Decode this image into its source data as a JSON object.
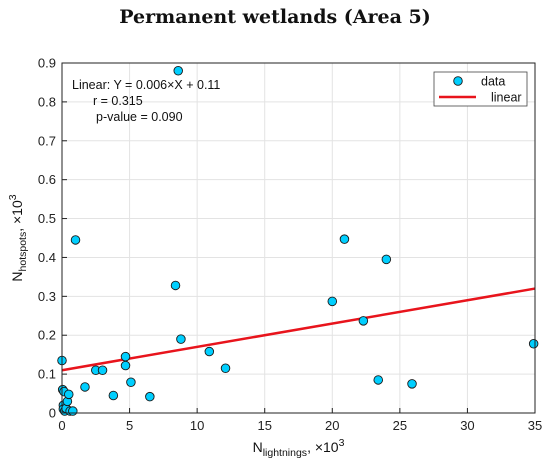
{
  "chart_data": {
    "type": "scatter",
    "title": "Permanent wetlands (Area 5)",
    "xlabel": {
      "base": "N",
      "sub": "lightnings",
      "suffix": ", ×10",
      "sup": "3"
    },
    "ylabel": {
      "base": "N",
      "sub": "hotspots",
      "suffix": ", ×10",
      "sup": "3"
    },
    "xlim": [
      0,
      35
    ],
    "ylim": [
      0,
      0.9
    ],
    "xticks": [
      "0",
      "5",
      "10",
      "15",
      "20",
      "25",
      "30",
      "35"
    ],
    "yticks": [
      "0",
      "0.1",
      "0.2",
      "0.3",
      "0.4",
      "0.5",
      "0.6",
      "0.7",
      "0.8",
      "0.9"
    ],
    "grid": true,
    "legend_position": "top-right",
    "legend": [
      "data",
      "linear"
    ],
    "annotations": [
      "Linear:  Y = 0.006×X + 0.11",
      "r = 0.315",
      "p-value = 0.090"
    ],
    "series": [
      {
        "name": "data",
        "color": "#00cfff",
        "points": [
          [
            0.0,
            0.135
          ],
          [
            0.05,
            0.06
          ],
          [
            0.15,
            0.055
          ],
          [
            0.1,
            0.02
          ],
          [
            0.1,
            0.01
          ],
          [
            0.2,
            0.005
          ],
          [
            0.3,
            0.012
          ],
          [
            0.4,
            0.03
          ],
          [
            0.5,
            0.048
          ],
          [
            0.6,
            0.005
          ],
          [
            0.8,
            0.005
          ],
          [
            1.0,
            0.445
          ],
          [
            1.7,
            0.067
          ],
          [
            2.5,
            0.11
          ],
          [
            3.0,
            0.11
          ],
          [
            3.8,
            0.045
          ],
          [
            4.7,
            0.145
          ],
          [
            4.7,
            0.122
          ],
          [
            5.1,
            0.079
          ],
          [
            6.5,
            0.042
          ],
          [
            8.4,
            0.328
          ],
          [
            8.6,
            0.88
          ],
          [
            8.8,
            0.19
          ],
          [
            10.9,
            0.158
          ],
          [
            12.1,
            0.115
          ],
          [
            20.0,
            0.287
          ],
          [
            20.9,
            0.447
          ],
          [
            22.3,
            0.237
          ],
          [
            23.4,
            0.085
          ],
          [
            24.0,
            0.395
          ],
          [
            25.9,
            0.075
          ],
          [
            34.9,
            0.178
          ]
        ]
      },
      {
        "name": "linear",
        "color": "#e8141c",
        "slope": 0.006,
        "intercept": 0.11
      }
    ]
  }
}
